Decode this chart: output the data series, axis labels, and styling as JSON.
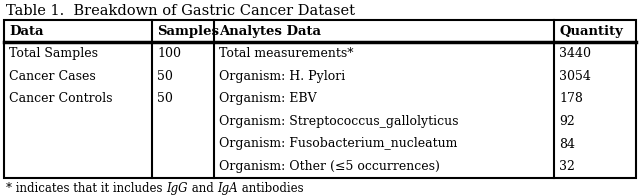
{
  "title": "Table 1.  Breakdown of Gastric Cancer Dataset",
  "title_fontsize": 10.5,
  "col_headers": [
    "Data",
    "Samples",
    "Analytes Data",
    "Quantity"
  ],
  "col_header_fontsize": 9.5,
  "left_data": [
    [
      "Total Samples",
      "100"
    ],
    [
      "Cancer Cases",
      "50"
    ],
    [
      "Cancer Controls",
      "50"
    ]
  ],
  "right_data": [
    [
      "Total measurements*",
      "3440"
    ],
    [
      "Organism: H. Pylori",
      "3054"
    ],
    [
      "Organism: EBV",
      "178"
    ],
    [
      "Organism: Streptococcus_gallolyticus",
      "92"
    ],
    [
      "Organism: Fusobacterium_nucleatum",
      "84"
    ],
    [
      "Organism: Other (≤5 occurrences)",
      "32"
    ]
  ],
  "footnote_parts": [
    "* indicates that it includes ",
    "IgG",
    " and ",
    "IgA",
    " antibodies"
  ],
  "footnote_italic": [
    false,
    true,
    false,
    true,
    false
  ],
  "footnote_fontsize": 8.5,
  "data_fontsize": 9,
  "bg_color": "white",
  "text_color": "black",
  "fig_width": 6.4,
  "fig_height": 1.96,
  "dpi": 100
}
